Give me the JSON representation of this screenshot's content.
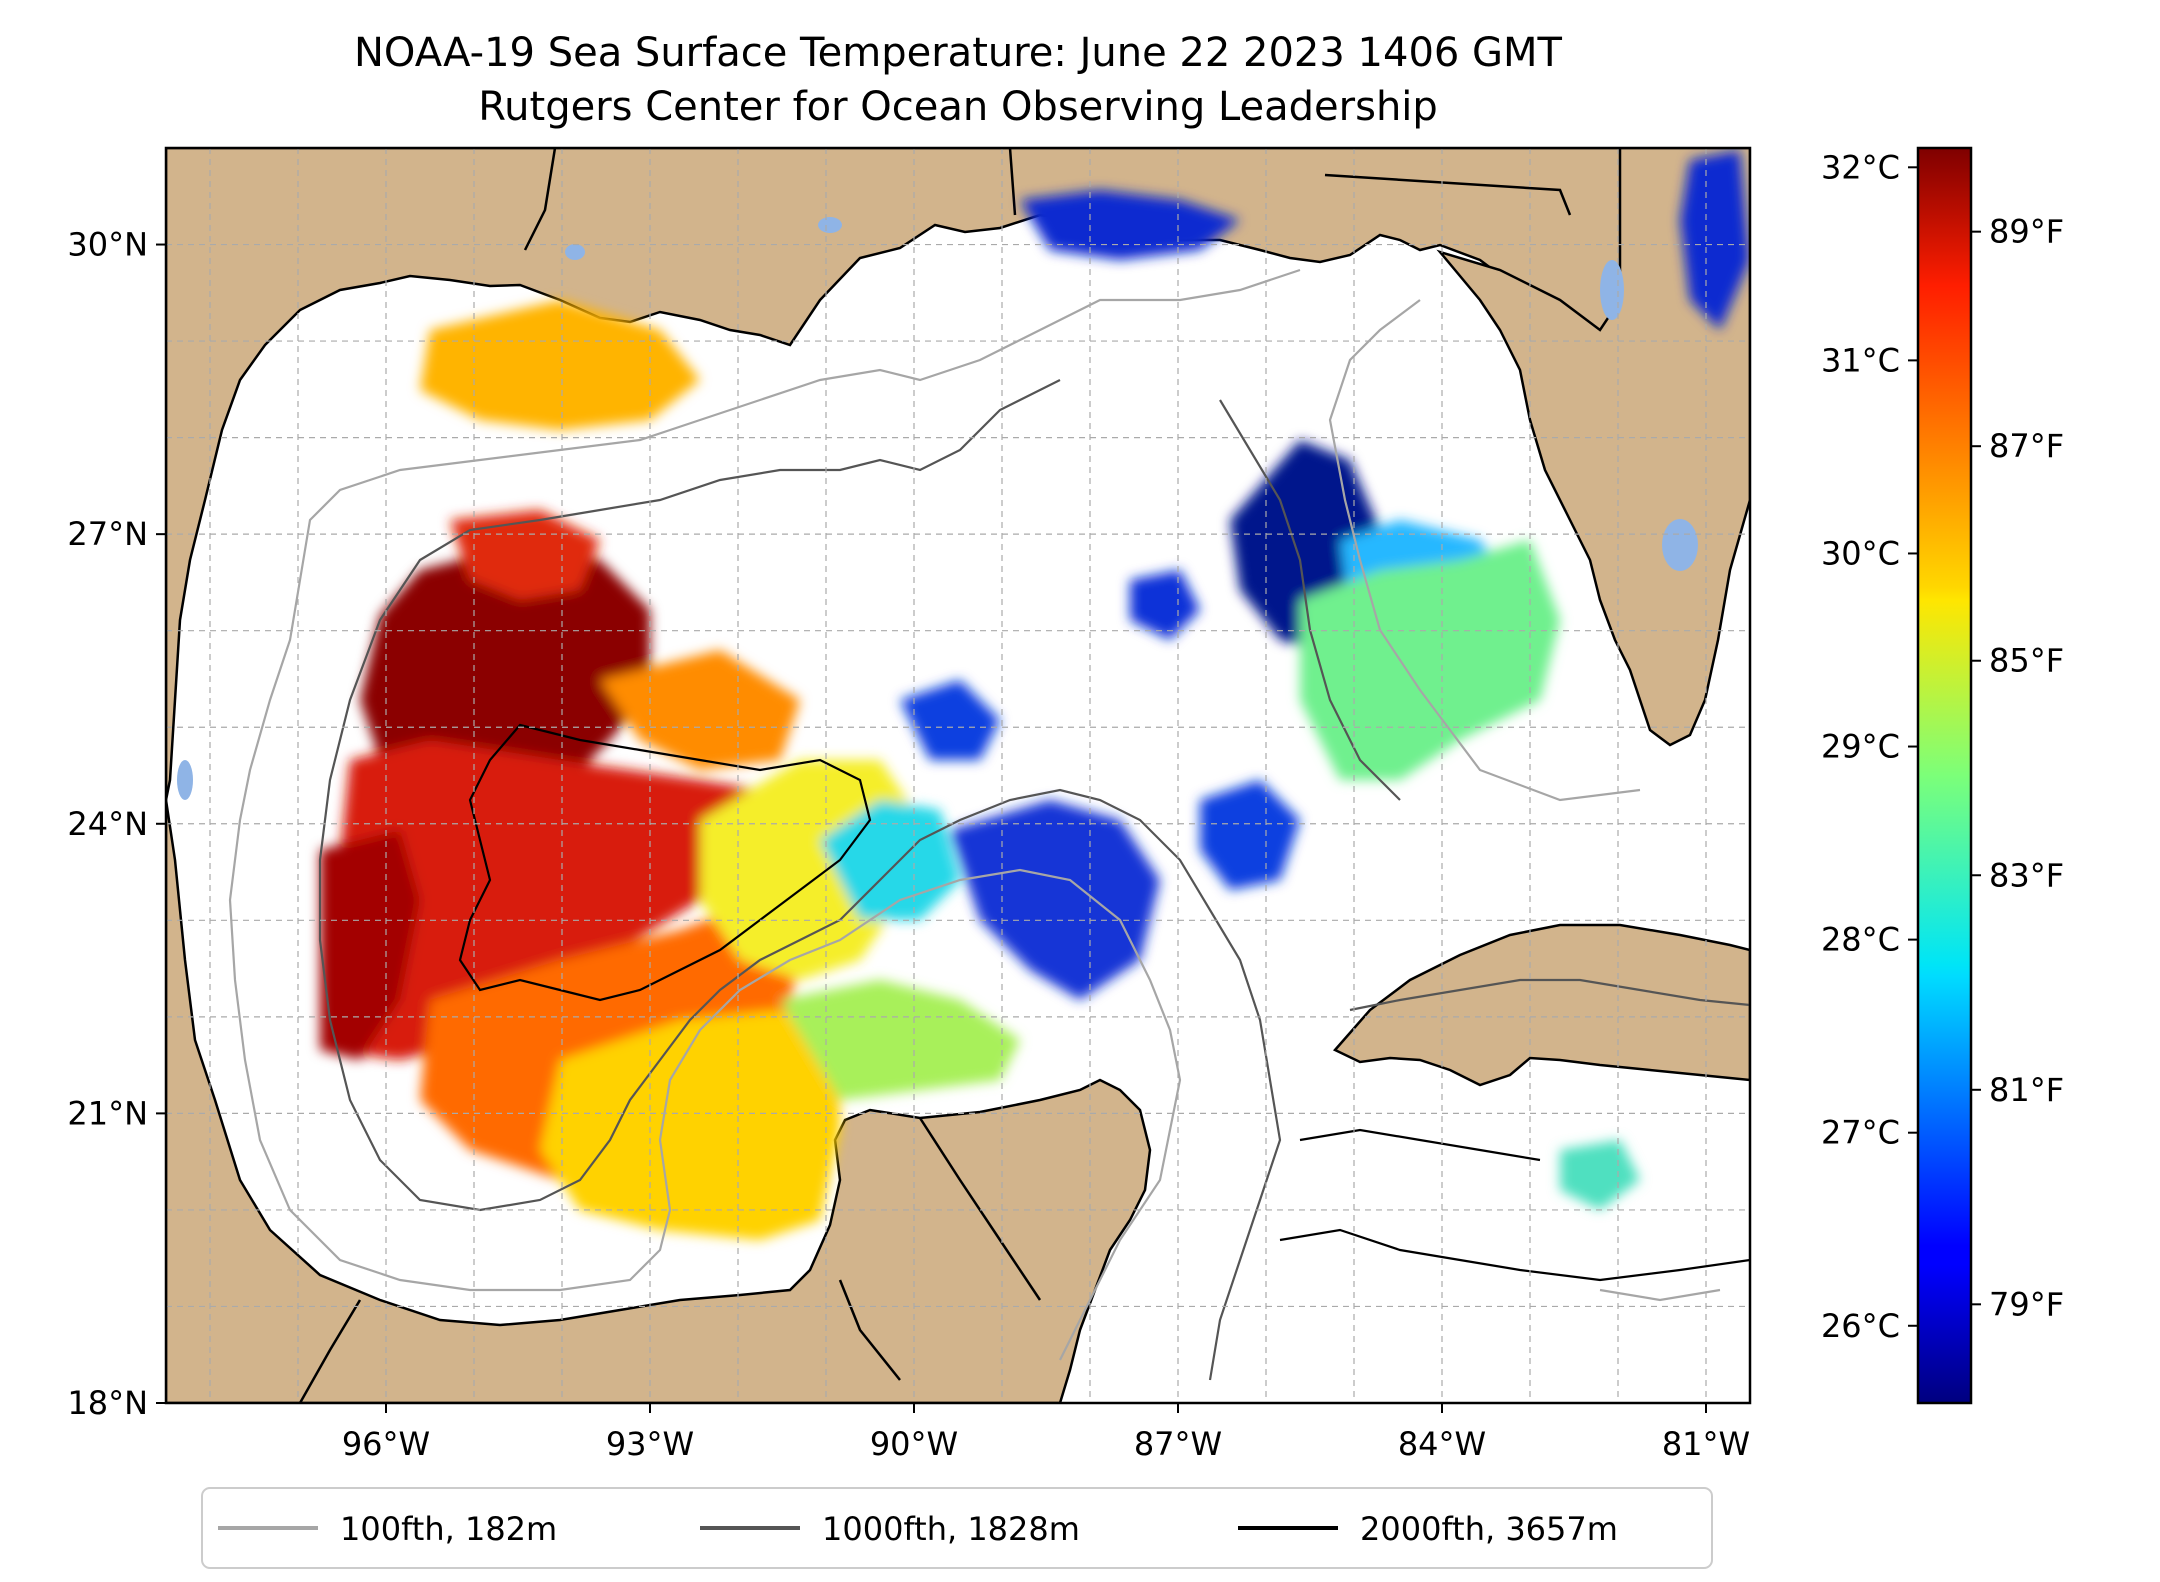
{
  "title_line1": "NOAA-19 Sea Surface Temperature: June 22 2023 1406 GMT",
  "title_line2": "Rutgers Center for Ocean Observing Leadership",
  "map": {
    "lon_range": [
      -98.5,
      -80.5
    ],
    "lat_range": [
      18,
      31
    ],
    "lon_ticks": [
      {
        "value": -96,
        "label": "96°W"
      },
      {
        "value": -93,
        "label": "93°W"
      },
      {
        "value": -90,
        "label": "90°W"
      },
      {
        "value": -87,
        "label": "87°W"
      },
      {
        "value": -84,
        "label": "84°W"
      },
      {
        "value": -81,
        "label": "81°W"
      }
    ],
    "lat_ticks": [
      {
        "value": 18,
        "label": "18°N"
      },
      {
        "value": 21,
        "label": "21°N"
      },
      {
        "value": 24,
        "label": "24°N"
      },
      {
        "value": 27,
        "label": "27°N"
      },
      {
        "value": 30,
        "label": "30°N"
      }
    ],
    "land_color": "#d2b48c",
    "lake_color": "#8fb4e6",
    "grid": true
  },
  "colorbar": {
    "colormap": "jet",
    "celsius_range": [
      25.6,
      32.1
    ],
    "celsius_ticks": [
      {
        "value": 26,
        "label": "26°C"
      },
      {
        "value": 27,
        "label": "27°C"
      },
      {
        "value": 28,
        "label": "28°C"
      },
      {
        "value": 29,
        "label": "29°C"
      },
      {
        "value": 30,
        "label": "30°C"
      },
      {
        "value": 31,
        "label": "31°C"
      },
      {
        "value": 32,
        "label": "32°C"
      }
    ],
    "fahrenheit_ticks": [
      {
        "value": 79,
        "label": "79°F"
      },
      {
        "value": 81,
        "label": "81°F"
      },
      {
        "value": 83,
        "label": "83°F"
      },
      {
        "value": 85,
        "label": "85°F"
      },
      {
        "value": 87,
        "label": "87°F"
      },
      {
        "value": 89,
        "label": "89°F"
      }
    ]
  },
  "legend": [
    {
      "label": "100fth, 182m",
      "color": "#a6a6a6"
    },
    {
      "label": "1000fth, 1828m",
      "color": "#555555"
    },
    {
      "label": "2000fth, 3657m",
      "color": "#000000"
    }
  ]
}
